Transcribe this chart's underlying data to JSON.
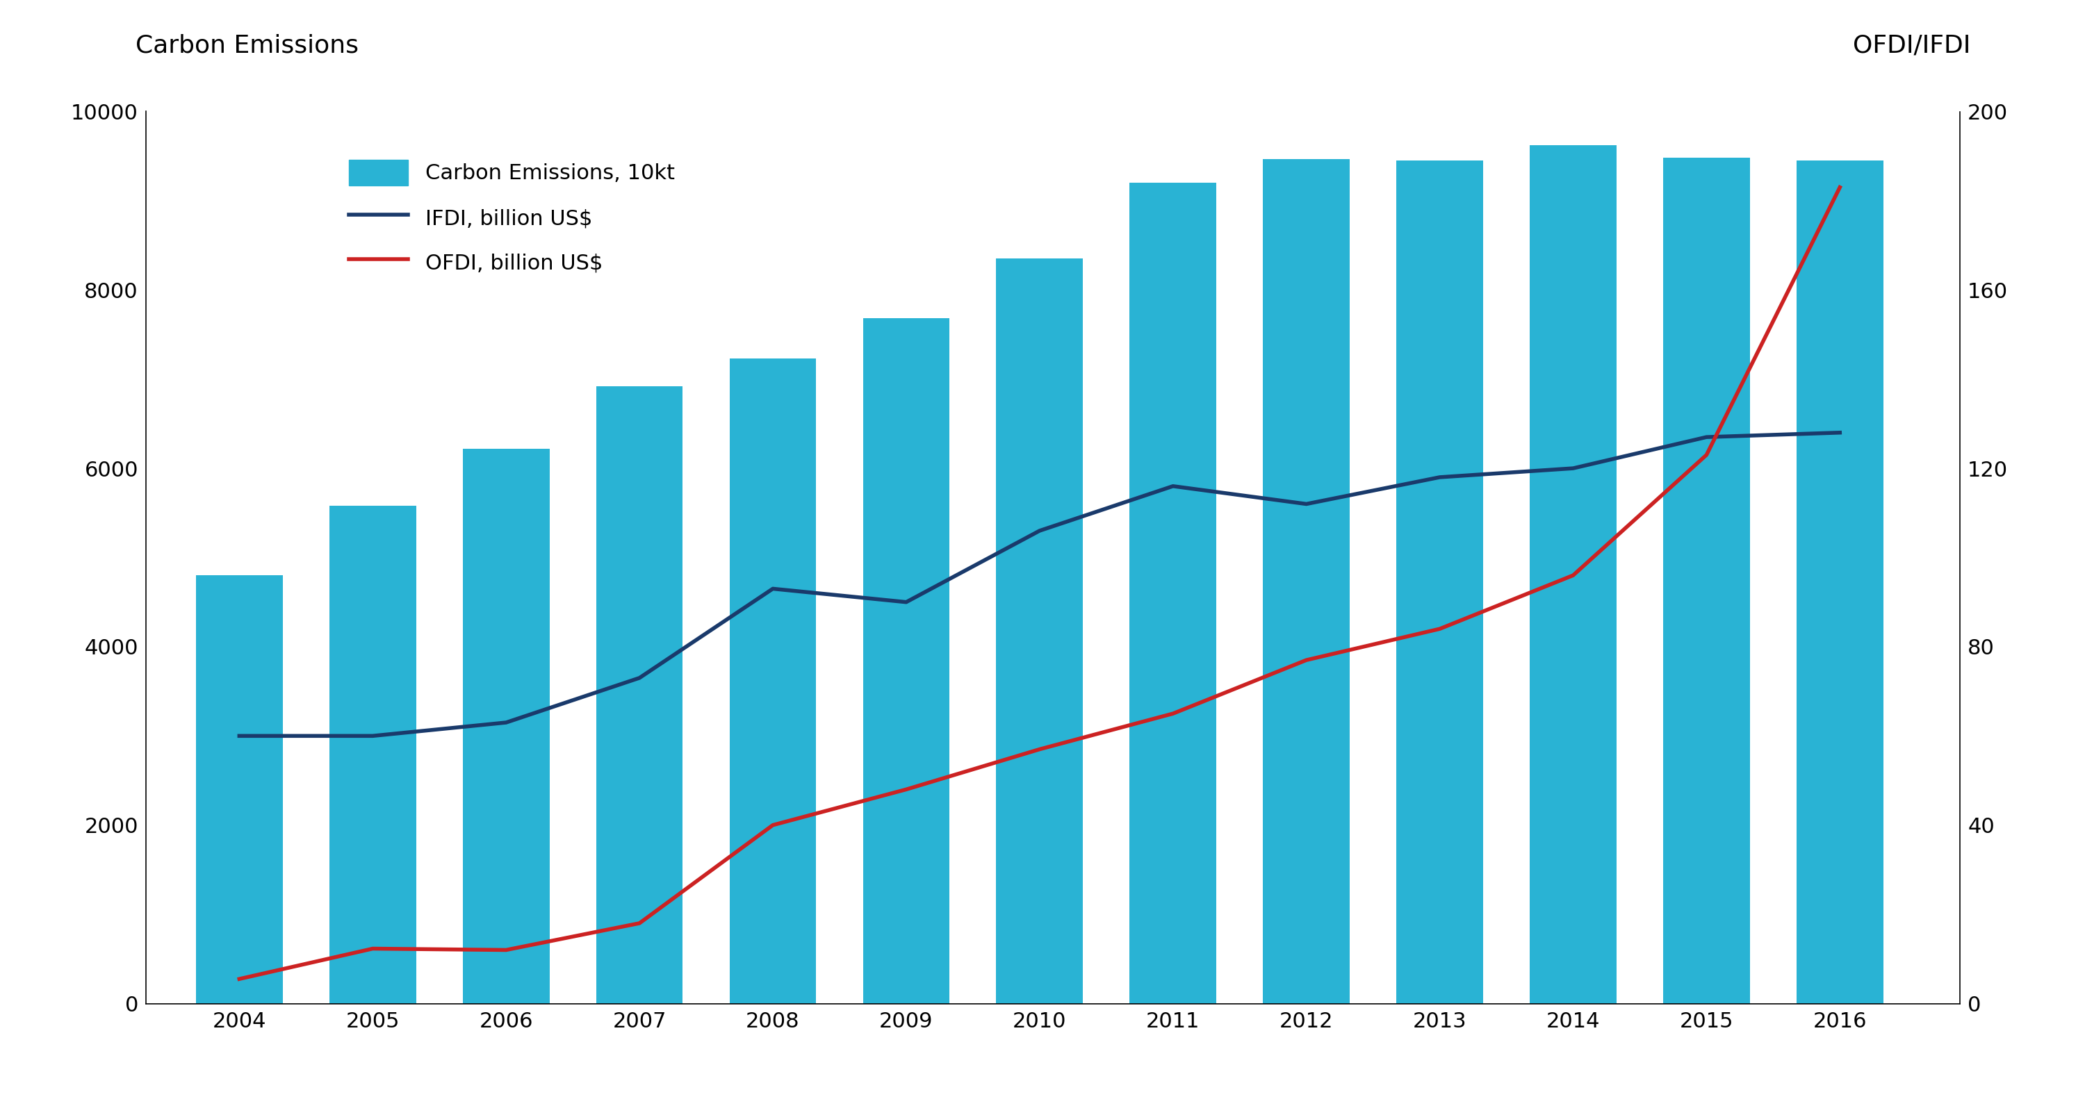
{
  "years": [
    2004,
    2005,
    2006,
    2007,
    2008,
    2009,
    2010,
    2011,
    2012,
    2013,
    2014,
    2015,
    2016
  ],
  "carbon_emissions": [
    4800,
    5580,
    6220,
    6920,
    7230,
    7680,
    8350,
    9200,
    9470,
    9450,
    9620,
    9480,
    9450
  ],
  "ifdi": [
    60,
    60,
    63,
    73,
    93,
    90,
    106,
    116,
    112,
    118,
    120,
    127,
    128
  ],
  "ofdi": [
    5.5,
    12.3,
    12,
    18,
    40,
    48,
    57,
    65,
    77,
    84,
    96,
    123,
    183
  ],
  "bar_color": "#29b3d4",
  "ifdi_color": "#1a3a6b",
  "ofdi_color": "#cc2222",
  "title_left": "Carbon Emissions",
  "title_right": "OFDI/IFDI",
  "legend_bar": "Carbon Emissions, 10kt",
  "legend_ifdi": "IFDI, billion US$",
  "legend_ofdi": "OFDI, billion US$",
  "ylim_left": [
    0,
    10000
  ],
  "ylim_right": [
    0,
    200
  ],
  "yticks_left": [
    0,
    2000,
    4000,
    6000,
    8000,
    10000
  ],
  "yticks_right": [
    0,
    40,
    80,
    120,
    160,
    200
  ],
  "background_color": "#ffffff",
  "title_fontsize": 26,
  "tick_fontsize": 22,
  "legend_fontsize": 22,
  "line_width": 4.0,
  "bar_width": 0.65
}
